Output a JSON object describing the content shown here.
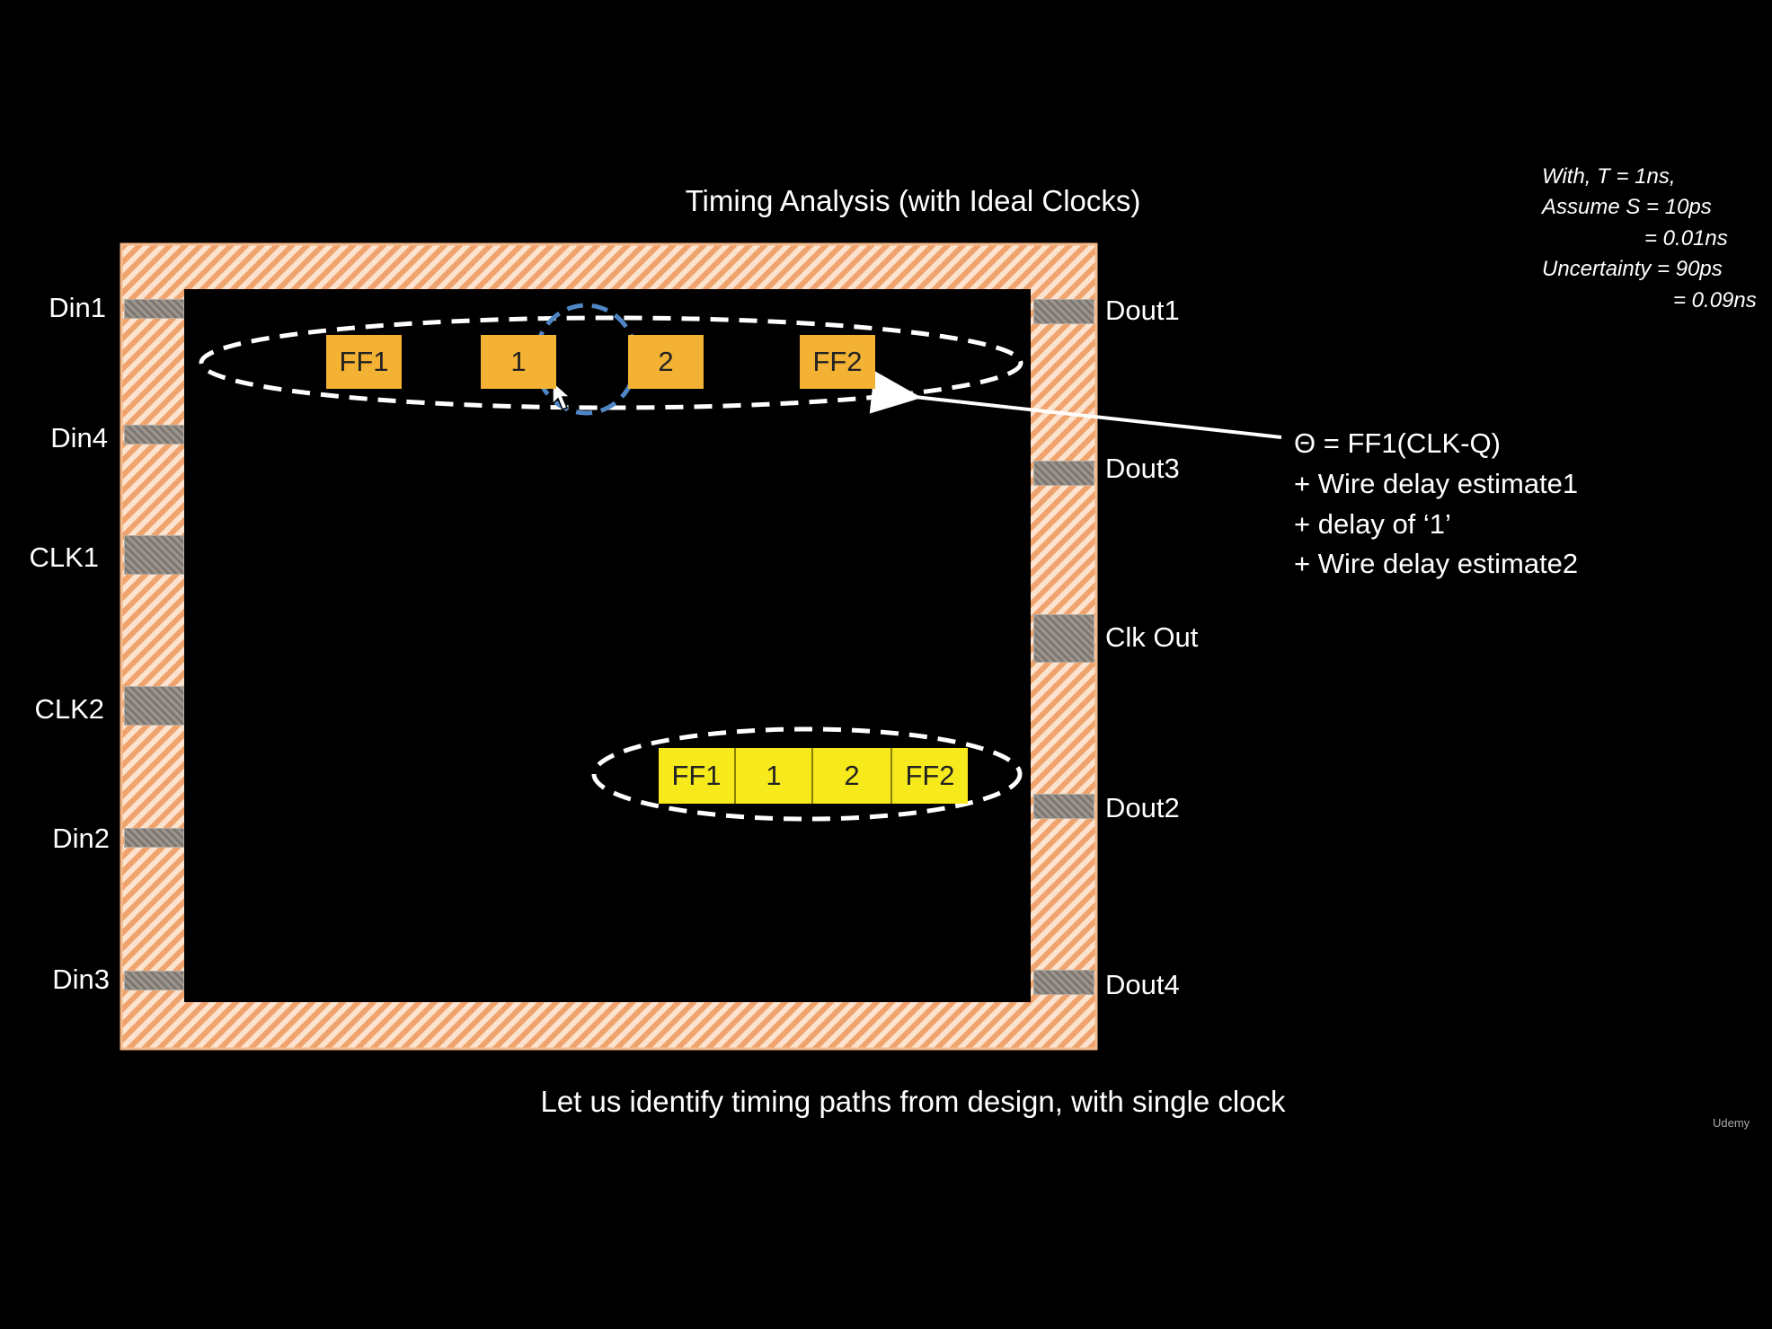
{
  "title": "Timing Analysis (with Ideal Clocks)",
  "footer": "Let us identify timing paths from design, with single clock",
  "pins_left": {
    "din1": "Din1",
    "din4": "Din4",
    "clk1": "CLK1",
    "clk2": "CLK2",
    "din2": "Din2",
    "din3": "Din3"
  },
  "pins_right": {
    "dout1": "Dout1",
    "dout3": "Dout3",
    "clkout": "Clk Out",
    "dout2": "Dout2",
    "dout4": "Dout4"
  },
  "path1_cells": [
    "FF1",
    "1",
    "2",
    "FF2"
  ],
  "path2_cells": [
    "FF1",
    "1",
    "2",
    "FF2"
  ],
  "equation": {
    "line1": "Θ = FF1(CLK-Q)",
    "line2": "+ Wire delay estimate1",
    "line3": "+ delay of ‘1’",
    "line4": "+ Wire delay estimate2"
  },
  "assumptions": {
    "line1": "With, T = 1ns,",
    "line2": "Assume S = 10ps",
    "line3": "= 0.01ns",
    "line4": "Uncertainty = 90ps",
    "line5": "= 0.09ns"
  },
  "logo": "Udemy",
  "colors": {
    "background": "#000000",
    "io_ring": "#f5b98a",
    "path1_cells": "#f3b233",
    "path2_cells": "#f7ea1c",
    "highlight_circle": "#4f86c6"
  }
}
